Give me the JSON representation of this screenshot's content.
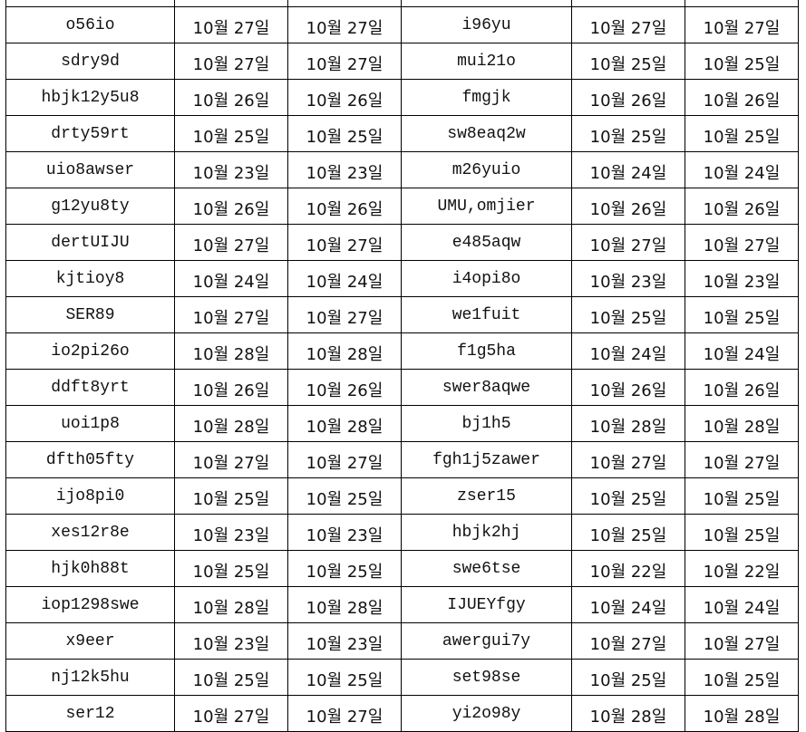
{
  "rows": [
    [
      "o56io",
      "10월 27일",
      "10월 27일",
      "i96yu",
      "10월 27일",
      "10월 27일"
    ],
    [
      "sdry9d",
      "10월 27일",
      "10월 27일",
      "mui21o",
      "10월 25일",
      "10월 25일"
    ],
    [
      "hbjk12y5u8",
      "10월 26일",
      "10월 26일",
      "fmgjk",
      "10월 26일",
      "10월 26일"
    ],
    [
      "drty59rt",
      "10월 25일",
      "10월 25일",
      "sw8eaq2w",
      "10월 25일",
      "10월 25일"
    ],
    [
      "uio8awser",
      "10월 23일",
      "10월 23일",
      "m26yuio",
      "10월 24일",
      "10월 24일"
    ],
    [
      "g12yu8ty",
      "10월 26일",
      "10월 26일",
      "UMU,omjier",
      "10월 26일",
      "10월 26일"
    ],
    [
      "dertUIJU",
      "10월 27일",
      "10월 27일",
      "e485aqw",
      "10월 27일",
      "10월 27일"
    ],
    [
      "kjtioy8",
      "10월 24일",
      "10월 24일",
      "i4opi8o",
      "10월 23일",
      "10월 23일"
    ],
    [
      "SER89",
      "10월 27일",
      "10월 27일",
      "we1fuit",
      "10월 25일",
      "10월 25일"
    ],
    [
      "io2pi26o",
      "10월 28일",
      "10월 28일",
      "f1g5ha",
      "10월 24일",
      "10월 24일"
    ],
    [
      "ddft8yrt",
      "10월 26일",
      "10월 26일",
      "swer8aqwe",
      "10월 26일",
      "10월 26일"
    ],
    [
      "uoi1p8",
      "10월 28일",
      "10월 28일",
      "bj1h5",
      "10월 28일",
      "10월 28일"
    ],
    [
      "dfth05fty",
      "10월 27일",
      "10월 27일",
      "fgh1j5zawer",
      "10월 27일",
      "10월 27일"
    ],
    [
      "ijo8pi0",
      "10월 25일",
      "10월 25일",
      "zser15",
      "10월 25일",
      "10월 25일"
    ],
    [
      "xes12r8e",
      "10월 23일",
      "10월 23일",
      "hbjk2hj",
      "10월 25일",
      "10월 25일"
    ],
    [
      "hjk0h88t",
      "10월 25일",
      "10월 25일",
      "swe6tse",
      "10월 22일",
      "10월 22일"
    ],
    [
      "iop1298swe",
      "10월 28일",
      "10월 28일",
      "IJUEYfgy",
      "10월 24일",
      "10월 24일"
    ],
    [
      "x9eer",
      "10월 23일",
      "10월 23일",
      "awergui7y",
      "10월 27일",
      "10월 27일"
    ],
    [
      "nj12k5hu",
      "10월 25일",
      "10월 25일",
      "set98se",
      "10월 25일",
      "10월 25일"
    ],
    [
      "ser12",
      "10월 27일",
      "10월 27일",
      "yi2o98y",
      "10월 28일",
      "10월 28일"
    ]
  ]
}
